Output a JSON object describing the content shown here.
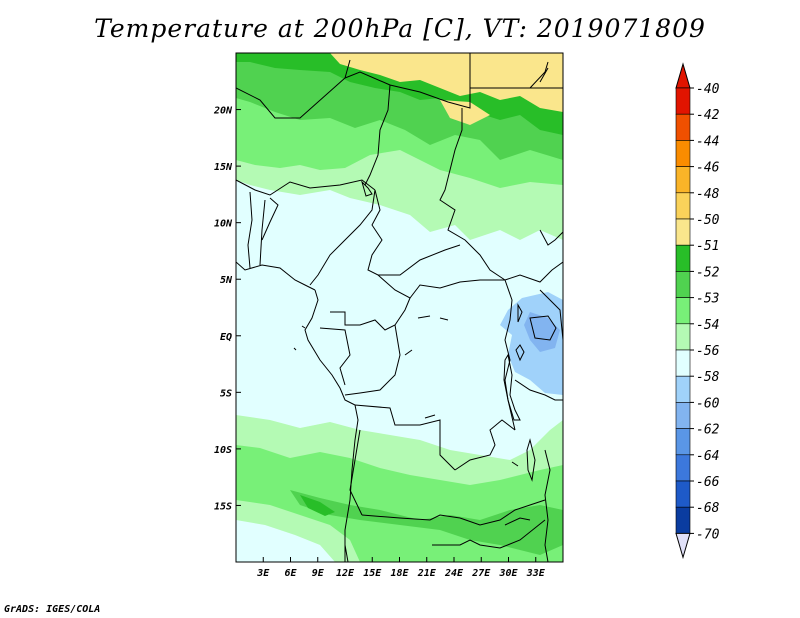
{
  "title": "Temperature at 200hPa [C], VT: 2019071809",
  "credit": "GrADS: IGES/COLA",
  "map": {
    "lon_range": [
      0,
      36
    ],
    "lat_range": [
      -20,
      25
    ],
    "x_ticks": [
      {
        "label": "3E",
        "lon": 3
      },
      {
        "label": "6E",
        "lon": 6
      },
      {
        "label": "9E",
        "lon": 9
      },
      {
        "label": "12E",
        "lon": 12
      },
      {
        "label": "15E",
        "lon": 15
      },
      {
        "label": "18E",
        "lon": 18
      },
      {
        "label": "21E",
        "lon": 21
      },
      {
        "label": "24E",
        "lon": 24
      },
      {
        "label": "27E",
        "lon": 27
      },
      {
        "label": "30E",
        "lon": 30
      },
      {
        "label": "33E",
        "lon": 33
      }
    ],
    "y_ticks": [
      {
        "label": "20N",
        "lat": 20
      },
      {
        "label": "15N",
        "lat": 15
      },
      {
        "label": "10N",
        "lat": 10
      },
      {
        "label": "5N",
        "lat": 5
      },
      {
        "label": "EQ",
        "lat": 0
      },
      {
        "label": "5S",
        "lat": -5
      },
      {
        "label": "10S",
        "lat": -10
      },
      {
        "label": "15S",
        "lat": -15
      }
    ]
  },
  "legend": {
    "labels": [
      "-40",
      "-42",
      "-44",
      "-46",
      "-48",
      "-50",
      "-51",
      "-52",
      "-53",
      "-54",
      "-56",
      "-58",
      "-60",
      "-62",
      "-64",
      "-66",
      "-68",
      "-70"
    ],
    "colors": [
      "#e11400",
      "#f05000",
      "#fa8c00",
      "#fab428",
      "#fad25a",
      "#fae68c",
      "#28be28",
      "#50d250",
      "#78f078",
      "#b4fab4",
      "#e1ffff",
      "#a0d2fa",
      "#82b4f0",
      "#5a96e6",
      "#3c78dc",
      "#1e5ac8",
      "#0a3ca0",
      "#00146e"
    ],
    "top_color": "#e11400",
    "bottom_color": "#e0e0f8"
  },
  "field_colors": {
    "c_m50": "#fae68c",
    "c_m51": "#28be28",
    "c_m52": "#50d250",
    "c_m53": "#78f078",
    "c_m54": "#b4fab4",
    "c_m56": "#e1ffff",
    "c_m58": "#a0d2fa",
    "c_m60": "#82b4f0"
  }
}
